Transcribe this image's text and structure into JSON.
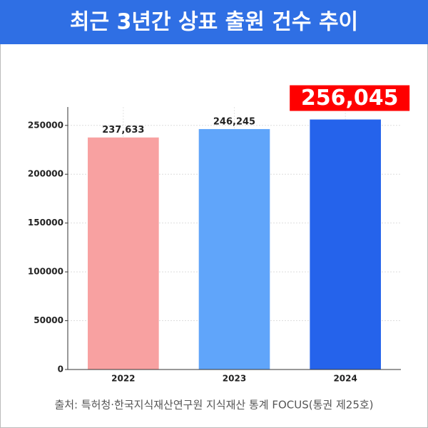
{
  "chart_data": {
    "type": "bar",
    "title": "최근 3년간 상표 출원 건수 추이",
    "categories": [
      "2022",
      "2023",
      "2024"
    ],
    "values": [
      237633,
      246245,
      256045
    ],
    "value_labels": [
      "237,633",
      "246,245",
      "256,045"
    ],
    "colors": [
      "#f8a1a1",
      "#60a5fa",
      "#2563eb"
    ],
    "ylim": [
      0,
      268847
    ],
    "yticks": [
      0,
      50000,
      100000,
      150000,
      200000,
      250000
    ],
    "grid": true,
    "source": "출처: 특허청·한국지식재산연구원 지식재산 통계 FOCUS(통권 제25호)"
  }
}
